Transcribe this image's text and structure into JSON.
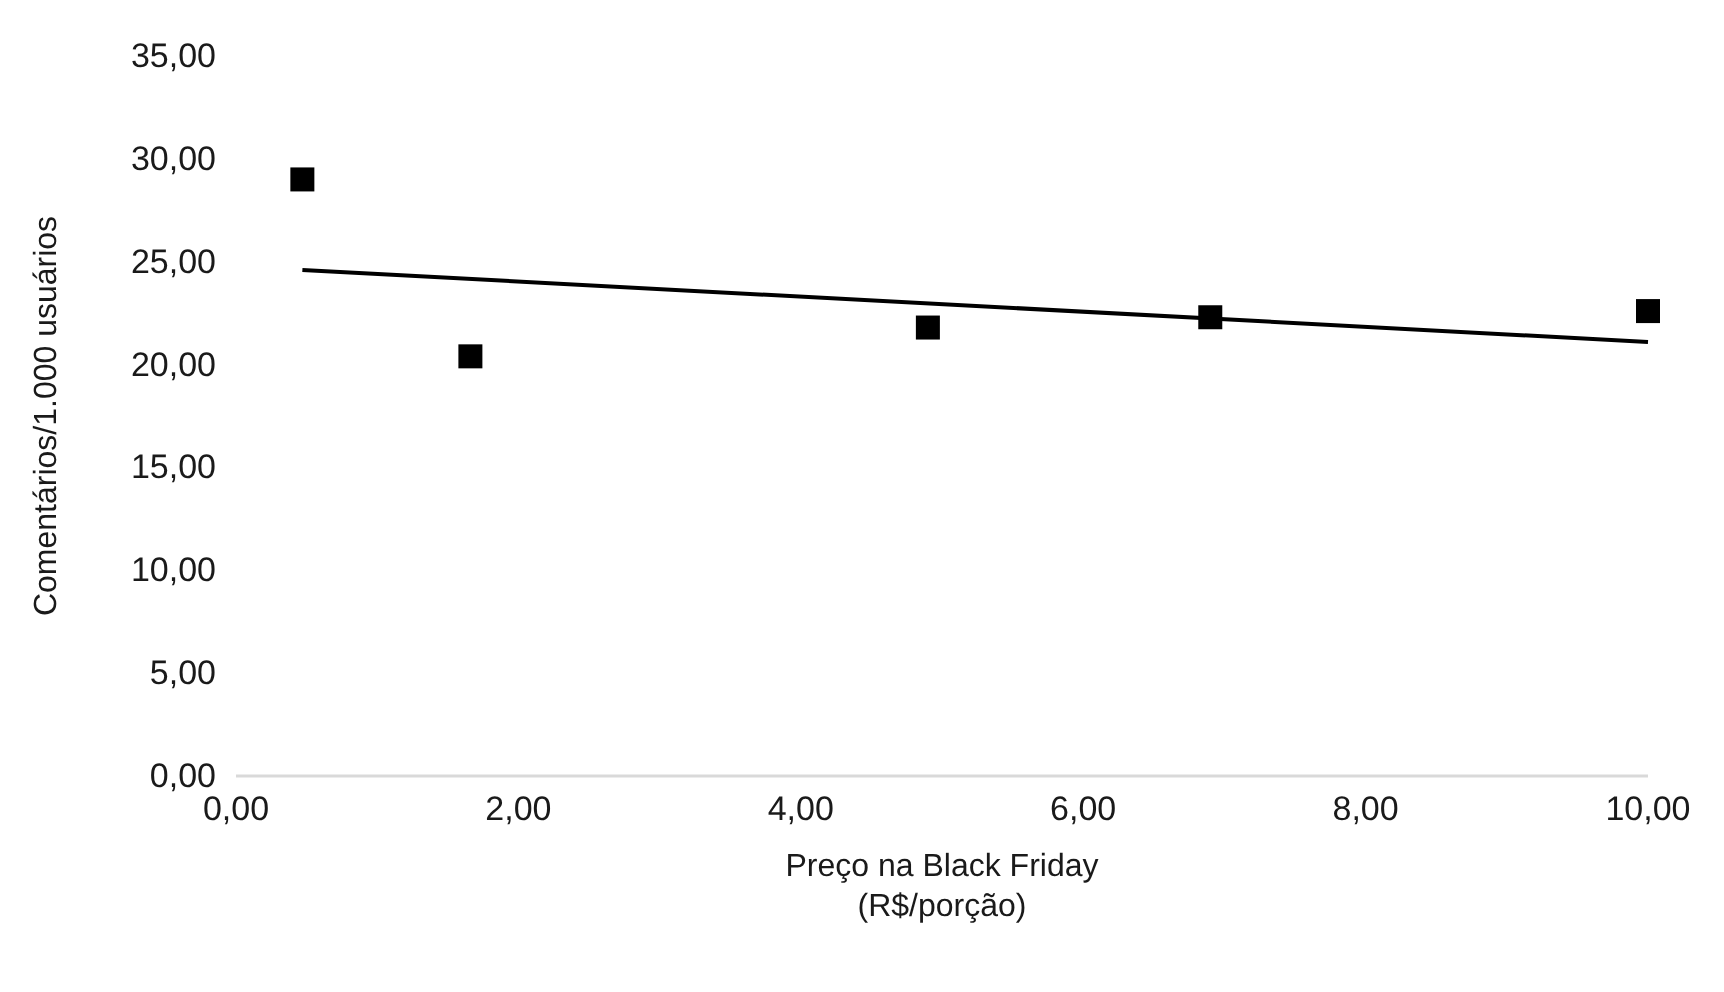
{
  "chart_data": {
    "type": "scatter",
    "xlabel": "Preço na Black Friday\n(R$/porção)",
    "ylabel": "Comentários/1.000  usuários",
    "xlim": [
      0,
      10
    ],
    "ylim": [
      0,
      35
    ],
    "xticks": [
      {
        "value": 0,
        "label": "0,00"
      },
      {
        "value": 2,
        "label": "2,00"
      },
      {
        "value": 4,
        "label": "4,00"
      },
      {
        "value": 6,
        "label": "6,00"
      },
      {
        "value": 8,
        "label": "8,00"
      },
      {
        "value": 10,
        "label": "10,00"
      }
    ],
    "yticks": [
      {
        "value": 0,
        "label": "0,00"
      },
      {
        "value": 5,
        "label": "5,00"
      },
      {
        "value": 10,
        "label": "10,00"
      },
      {
        "value": 15,
        "label": "15,00"
      },
      {
        "value": 20,
        "label": "20,00"
      },
      {
        "value": 25,
        "label": "25,00"
      },
      {
        "value": 30,
        "label": "30,00"
      },
      {
        "value": 35,
        "label": "35,00"
      }
    ],
    "marker": "square",
    "grid": false,
    "series": [
      {
        "color": "#000000",
        "x": [
          0.47,
          1.66,
          4.9,
          6.9,
          10.0
        ],
        "values": [
          29.0,
          20.4,
          21.8,
          22.3,
          22.6
        ]
      },
      {
        "type": "line",
        "color": "#000000",
        "x": [
          0.47,
          10.0
        ],
        "values": [
          24.6,
          21.1
        ],
        "marker": "none"
      }
    ]
  }
}
